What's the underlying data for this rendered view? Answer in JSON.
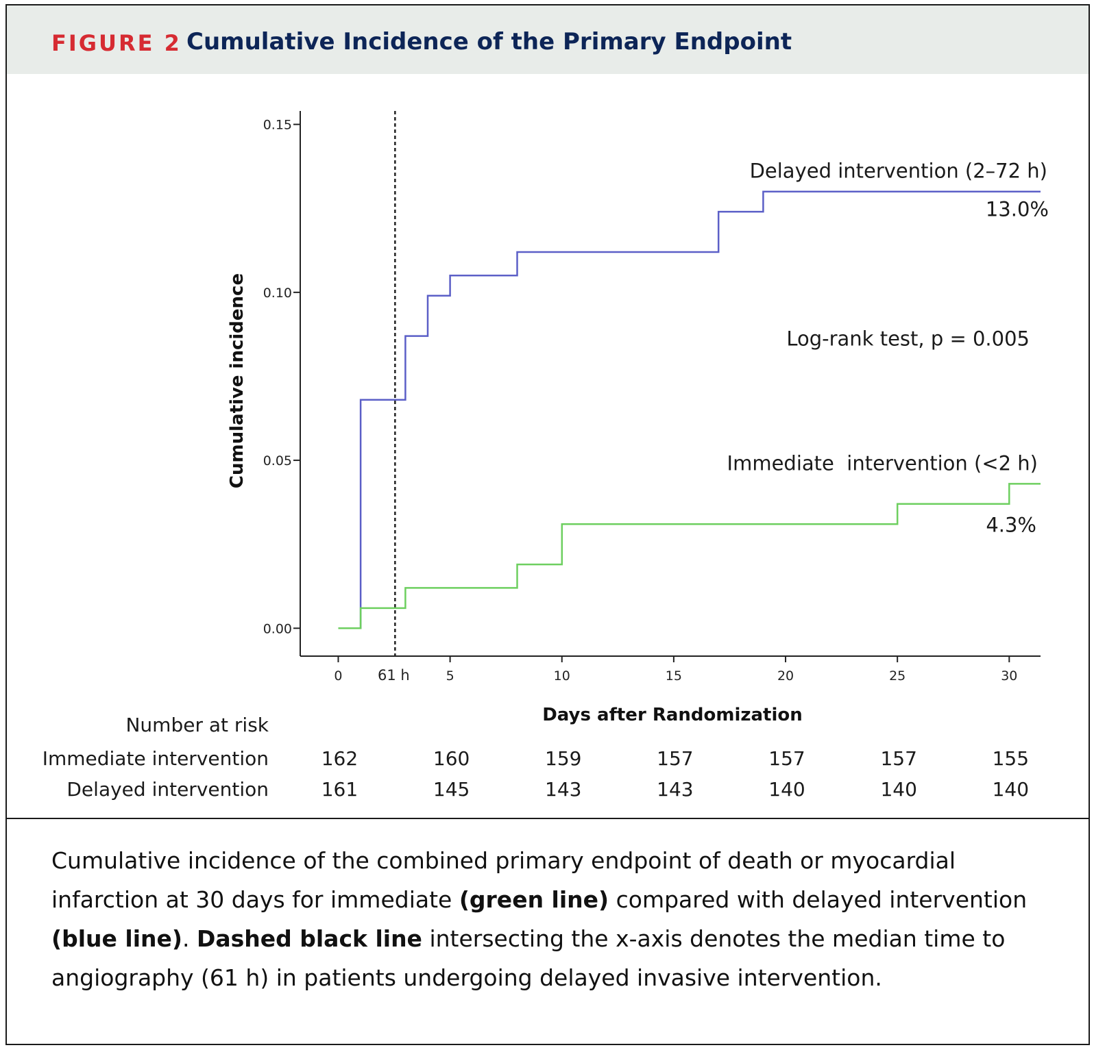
{
  "figure": {
    "label": "FIGURE 2",
    "title": "Cumulative Incidence of the Primary Endpoint"
  },
  "chart_data": {
    "type": "line",
    "step": true,
    "xlabel": "Days after Randomization",
    "ylabel": "Cumulative incidence",
    "xlim": [
      -1.7,
      31.4
    ],
    "ylim": [
      -0.0083,
      0.154
    ],
    "x_ticks": [
      0,
      5,
      10,
      15,
      20,
      25,
      30
    ],
    "x_tick_labels": [
      "0",
      "5",
      "10",
      "15",
      "20",
      "25",
      "30"
    ],
    "y_ticks": [
      0.0,
      0.05,
      0.1,
      0.15
    ],
    "y_tick_labels": [
      "0.00",
      "0.05",
      "0.10",
      "0.15"
    ],
    "reference_line": {
      "x": 2.54,
      "label": "61 h",
      "style": "dashed",
      "color": "#222222"
    },
    "series": [
      {
        "name": "Delayed intervention (2–72 h)",
        "end_label": "13.0%",
        "color": "#5b5fc7",
        "x": [
          0,
          1.0,
          1.0,
          3.0,
          3.0,
          4.0,
          4.0,
          5.0,
          5.0,
          8.0,
          8.0,
          17.0,
          17.0,
          19.0,
          19.0,
          31.4
        ],
        "y": [
          0,
          0,
          0.068,
          0.068,
          0.087,
          0.087,
          0.099,
          0.099,
          0.105,
          0.105,
          0.112,
          0.112,
          0.124,
          0.124,
          0.13,
          0.13
        ]
      },
      {
        "name": "Immediate  intervention (<2 h)",
        "end_label": "4.3%",
        "color": "#6dcf5f",
        "x": [
          0,
          1.0,
          1.0,
          3.0,
          3.0,
          8.0,
          8.0,
          10.0,
          10.0,
          25.0,
          25.0,
          30.0,
          30.0,
          31.4
        ],
        "y": [
          0,
          0,
          0.006,
          0.006,
          0.012,
          0.012,
          0.019,
          0.019,
          0.031,
          0.031,
          0.037,
          0.037,
          0.043,
          0.043
        ]
      }
    ],
    "annotation": "Log-rank test, p = 0.005",
    "risk_table": {
      "title": "Number at risk",
      "x": [
        0,
        5,
        10,
        15,
        20,
        25,
        30
      ],
      "rows": [
        {
          "label": "Immediate intervention",
          "values": [
            "162",
            "160",
            "159",
            "157",
            "157",
            "157",
            "155"
          ]
        },
        {
          "label": "Delayed intervention",
          "values": [
            "161",
            "145",
            "143",
            "143",
            "140",
            "140",
            "140"
          ]
        }
      ]
    }
  },
  "caption": {
    "part1": "Cumulative incidence of the combined primary endpoint of death or myocardial infarction at 30 days for immediate ",
    "bold1": "(green line)",
    "part2": " compared with delayed intervention ",
    "bold2": "(blue line)",
    "part3": ". ",
    "bold3": "Dashed black line",
    "part4": " intersecting the x-axis denotes the median time to angiography (61 h) in patients undergoing delayed invasive intervention."
  }
}
